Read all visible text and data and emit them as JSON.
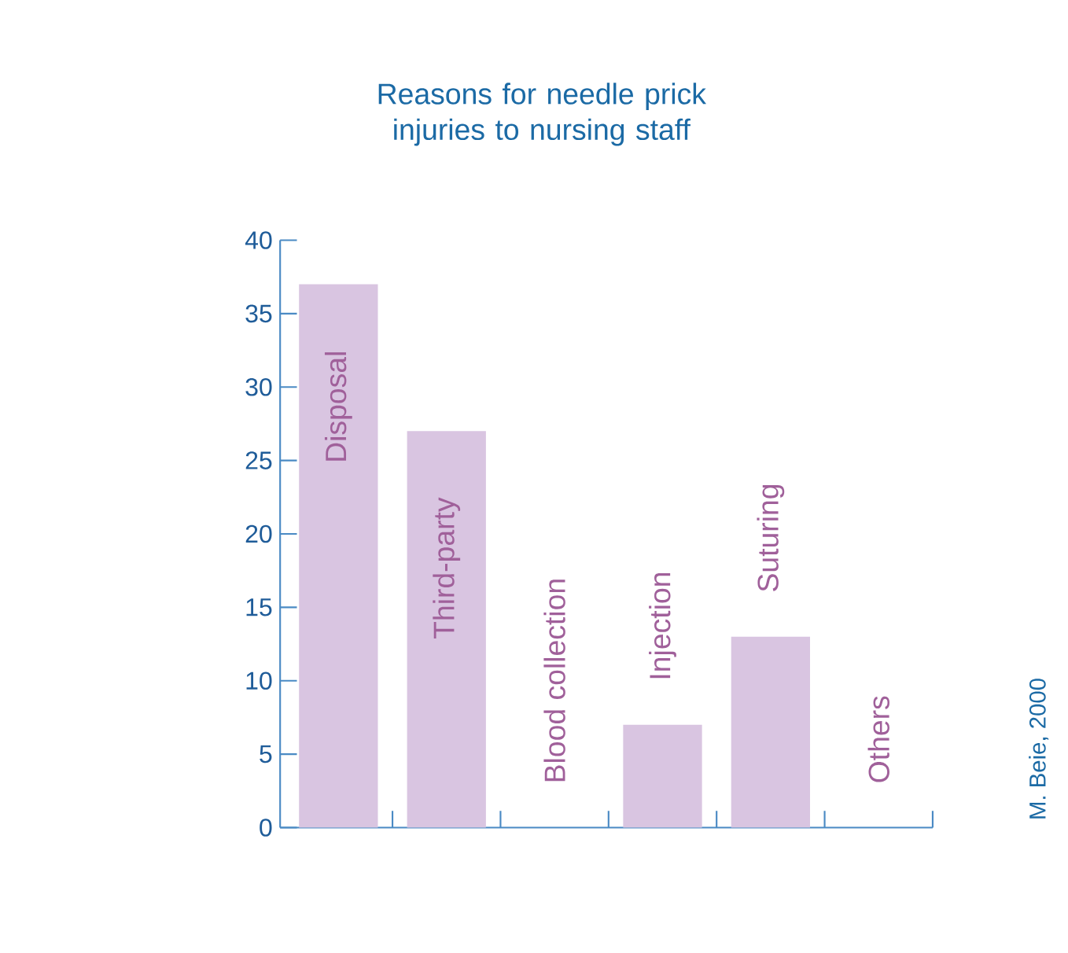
{
  "chart_data": {
    "type": "bar",
    "title": "Reasons for needle prick injuries to nursing staff",
    "categories": [
      "Disposal",
      "Third-party",
      "Blood collection",
      "Injection",
      "Suturing",
      "Others"
    ],
    "values": [
      37,
      27,
      0,
      7,
      13,
      0
    ],
    "color": "#d9c5e1",
    "ylim": [
      0,
      40
    ],
    "yticks": [
      0,
      5,
      10,
      15,
      20,
      25,
      30,
      35,
      40
    ],
    "annotations": [
      "M. Beie, 2000"
    ]
  }
}
